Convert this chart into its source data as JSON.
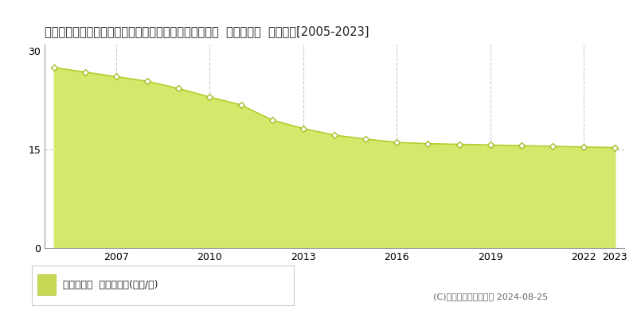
{
  "title": "香川県綾歌郡宇多津町大字東分字本村西１５５１番２外  基準地価格  地価推移[2005-2023]",
  "years": [
    2005,
    2006,
    2007,
    2008,
    2009,
    2010,
    2011,
    2012,
    2013,
    2014,
    2015,
    2016,
    2017,
    2018,
    2019,
    2020,
    2021,
    2022,
    2023
  ],
  "values": [
    27.5,
    26.8,
    26.1,
    25.4,
    24.3,
    23.0,
    21.8,
    19.5,
    18.2,
    17.2,
    16.6,
    16.1,
    15.9,
    15.8,
    15.7,
    15.6,
    15.5,
    15.4,
    15.3
  ],
  "fill_color": "#d4e96b",
  "line_color": "#b8cc30",
  "marker_face_color": "#ffffff",
  "marker_edge_color": "#a8bb28",
  "grid_color": "#cccccc",
  "background_color": "#ffffff",
  "ylim": [
    0,
    31
  ],
  "yticks": [
    0,
    15,
    30
  ],
  "xtick_years": [
    2007,
    2010,
    2013,
    2016,
    2019,
    2022,
    2023
  ],
  "vgrid_years": [
    2007,
    2010,
    2013,
    2016,
    2019,
    2022
  ],
  "hgrid_y": 15,
  "legend_label": "基準地価格  平均坪単価(万円/坪)",
  "legend_color": "#c8d855",
  "copyright_text": "(C)土地価格ドットコム 2024-08-25",
  "title_fontsize": 10.5,
  "tick_fontsize": 9,
  "legend_fontsize": 9,
  "copyright_fontsize": 8
}
